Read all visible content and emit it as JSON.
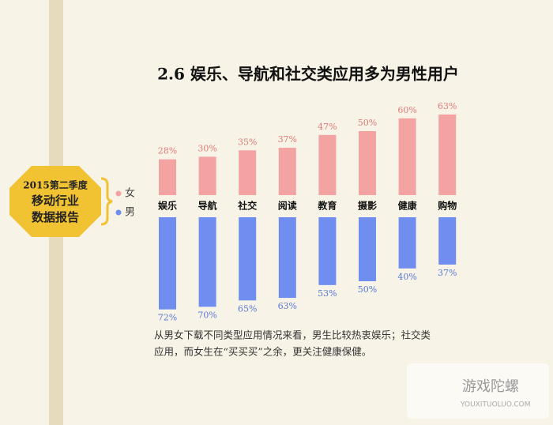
{
  "chart_data": {
    "type": "diverging-bar",
    "title": "2.6 娱乐、导航和社交类应用多为男性用户",
    "badge": [
      "2015第二季度",
      "移动行业",
      "数据报告"
    ],
    "categories": [
      "娱乐",
      "导航",
      "社交",
      "阅读",
      "教育",
      "摄影",
      "健康",
      "购物"
    ],
    "series": [
      {
        "name": "女",
        "color": "#f4a3a3",
        "values": [
          28,
          30,
          35,
          37,
          47,
          50,
          60,
          63
        ],
        "value_labels": [
          "28%",
          "30%",
          "35%",
          "37%",
          "47%",
          "50%",
          "60%",
          "63%"
        ]
      },
      {
        "name": "男",
        "color": "#6f8ef0",
        "values": [
          72,
          70,
          65,
          63,
          53,
          50,
          40,
          37
        ],
        "value_labels": [
          "72%",
          "70%",
          "65%",
          "63%",
          "53%",
          "50%",
          "40%",
          "37%"
        ]
      }
    ],
    "note": [
      "从男女下载不同类型应用情况来看，男生比较热衷娱乐；社交类",
      "应用，而女生在“买买买”之余，更关注健康保健。"
    ],
    "watermark": [
      "游戏陀螺",
      "YOUXITUOLUO.COM"
    ]
  }
}
